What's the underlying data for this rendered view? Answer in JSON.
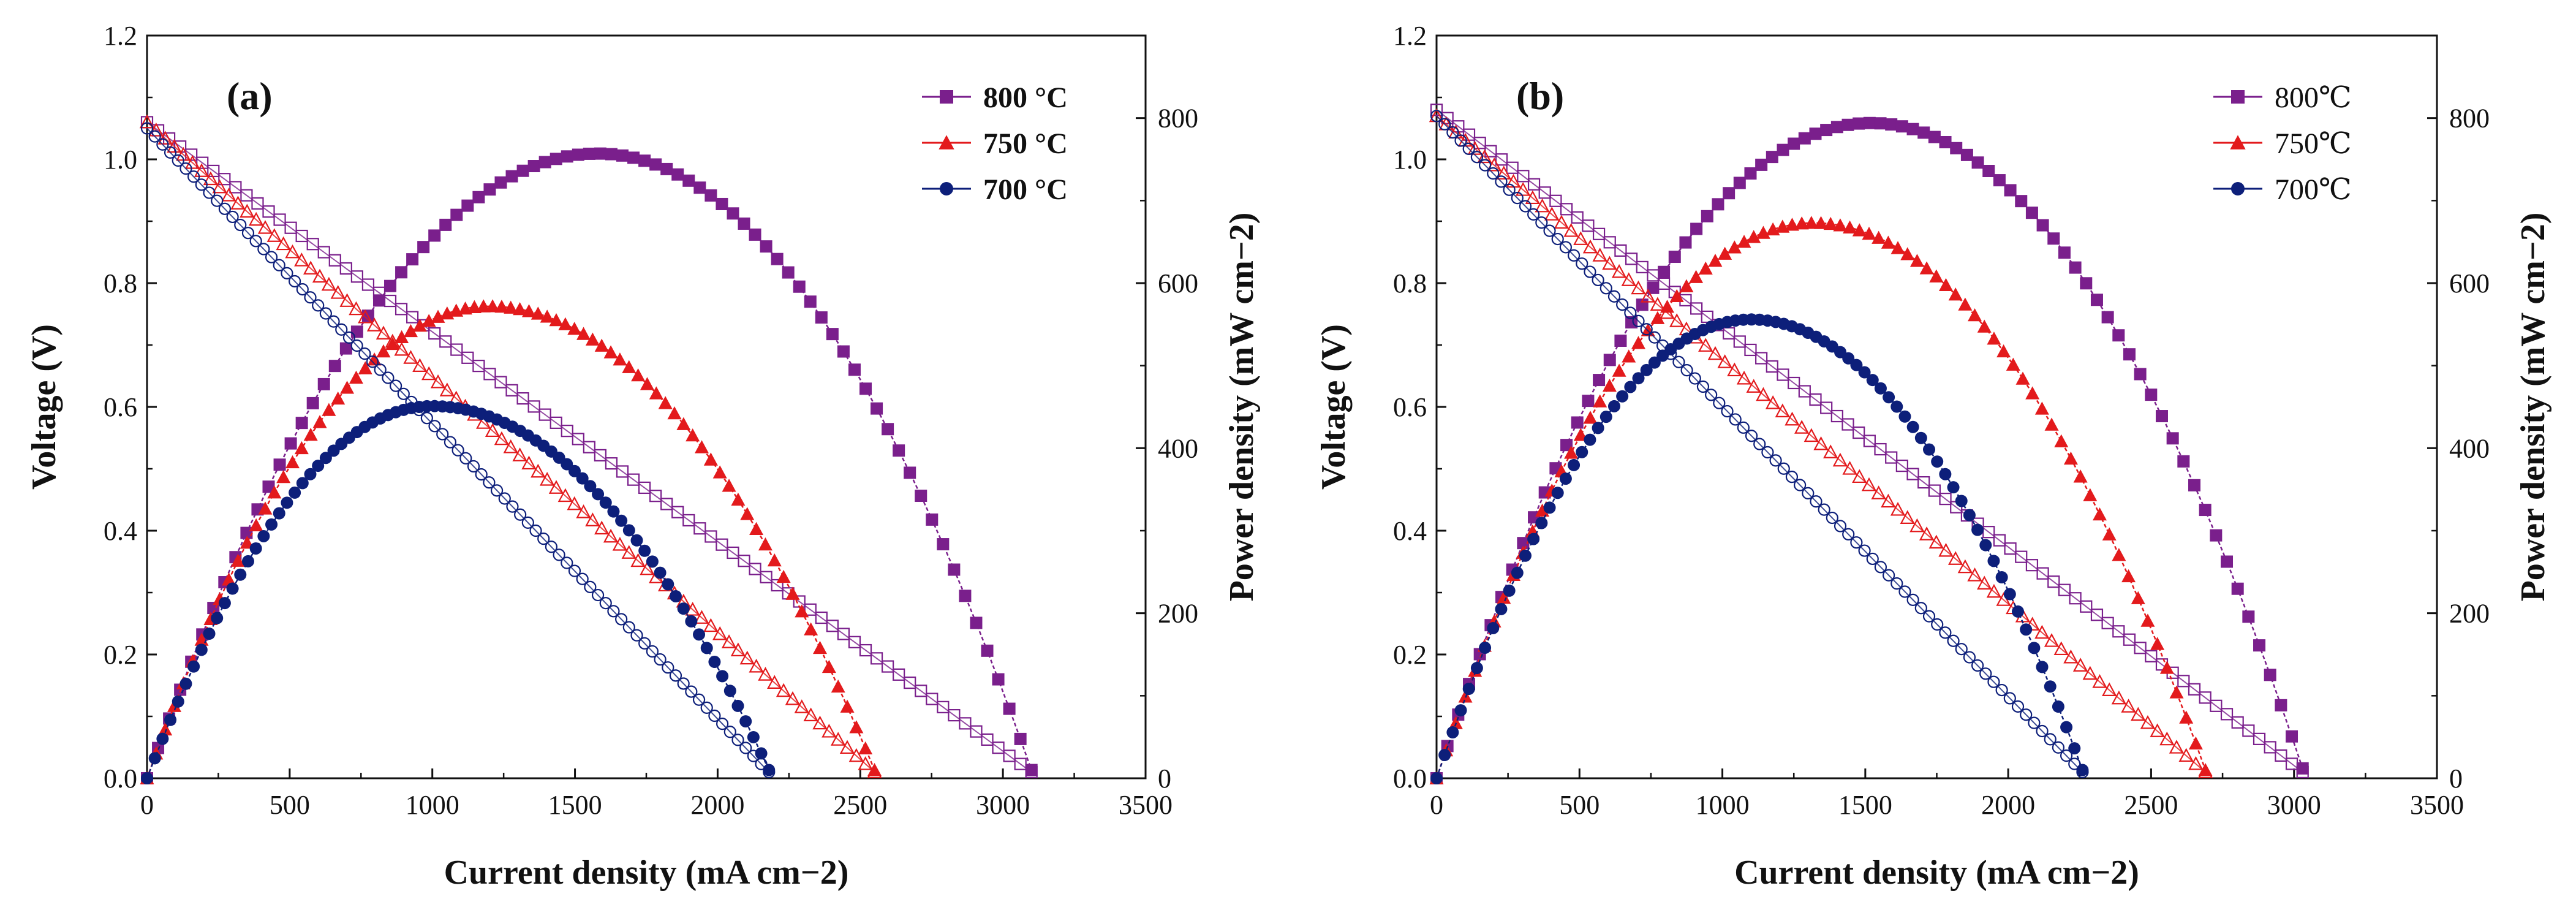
{
  "chart_data": [
    {
      "type": "line",
      "panel_label": "(a)",
      "xlabel": "Current density (mA cm−2)",
      "ylabel": "Voltage (V)",
      "y2label": "Power density (mW cm−2)",
      "xlim": [
        0,
        3500
      ],
      "ylim": [
        0,
        1.2
      ],
      "y2lim": [
        0,
        900
      ],
      "xticks": [
        "0",
        "500",
        "1000",
        "1500",
        "2000",
        "2500",
        "3000",
        "3500"
      ],
      "yticks": [
        "0.0",
        "0.2",
        "0.4",
        "0.6",
        "0.8",
        "1.0",
        "1.2"
      ],
      "y2ticks": [
        "0",
        "200",
        "400",
        "600",
        "800"
      ],
      "legend_position": "top-right",
      "legend_bold": true,
      "series": [
        {
          "name": "800 °C",
          "color": "#7a1f8c",
          "marker": "square",
          "ocv": 1.06,
          "v_end": 0.01,
          "i_max": 3100,
          "p_max": 757,
          "i_at_pmax": 1580,
          "p_end": 10
        },
        {
          "name": "750 °C",
          "color": "#e31a1c",
          "marker": "triangle",
          "ocv": 1.06,
          "v_end": 0.01,
          "i_max": 2550,
          "p_max": 572,
          "i_at_pmax": 1200,
          "p_end": 10
        },
        {
          "name": "700 °C",
          "color": "#0d1f7a",
          "marker": "circle",
          "ocv": 1.05,
          "v_end": 0.01,
          "i_max": 2180,
          "p_max": 451,
          "i_at_pmax": 1000,
          "p_end": 10
        }
      ]
    },
    {
      "type": "line",
      "panel_label": "(b)",
      "xlabel": "Current density (mA cm−2)",
      "ylabel": "Voltage (V)",
      "y2label": "Power density (mW cm−2)",
      "xlim": [
        0,
        3500
      ],
      "ylim": [
        0,
        1.2
      ],
      "y2lim": [
        0,
        900
      ],
      "xticks": [
        "0",
        "500",
        "1000",
        "1500",
        "2000",
        "2500",
        "3000",
        "3500"
      ],
      "yticks": [
        "0.0",
        "0.2",
        "0.4",
        "0.6",
        "0.8",
        "1.0",
        "1.2"
      ],
      "y2ticks": [
        "0",
        "200",
        "400",
        "600",
        "800"
      ],
      "legend_position": "top-right",
      "legend_bold": false,
      "series": [
        {
          "name": "800℃",
          "color": "#7a1f8c",
          "marker": "square",
          "ocv": 1.08,
          "v_end": 0.01,
          "i_max": 3030,
          "p_max": 794,
          "i_at_pmax": 1520,
          "p_end": 12
        },
        {
          "name": "750℃",
          "color": "#e31a1c",
          "marker": "triangle",
          "ocv": 1.07,
          "v_end": 0.01,
          "i_max": 2690,
          "p_max": 673,
          "i_at_pmax": 1320,
          "p_end": 10
        },
        {
          "name": "700℃",
          "color": "#0d1f7a",
          "marker": "circle",
          "ocv": 1.07,
          "v_end": 0.01,
          "i_max": 2260,
          "p_max": 556,
          "i_at_pmax": 1100,
          "p_end": 10
        }
      ]
    }
  ]
}
